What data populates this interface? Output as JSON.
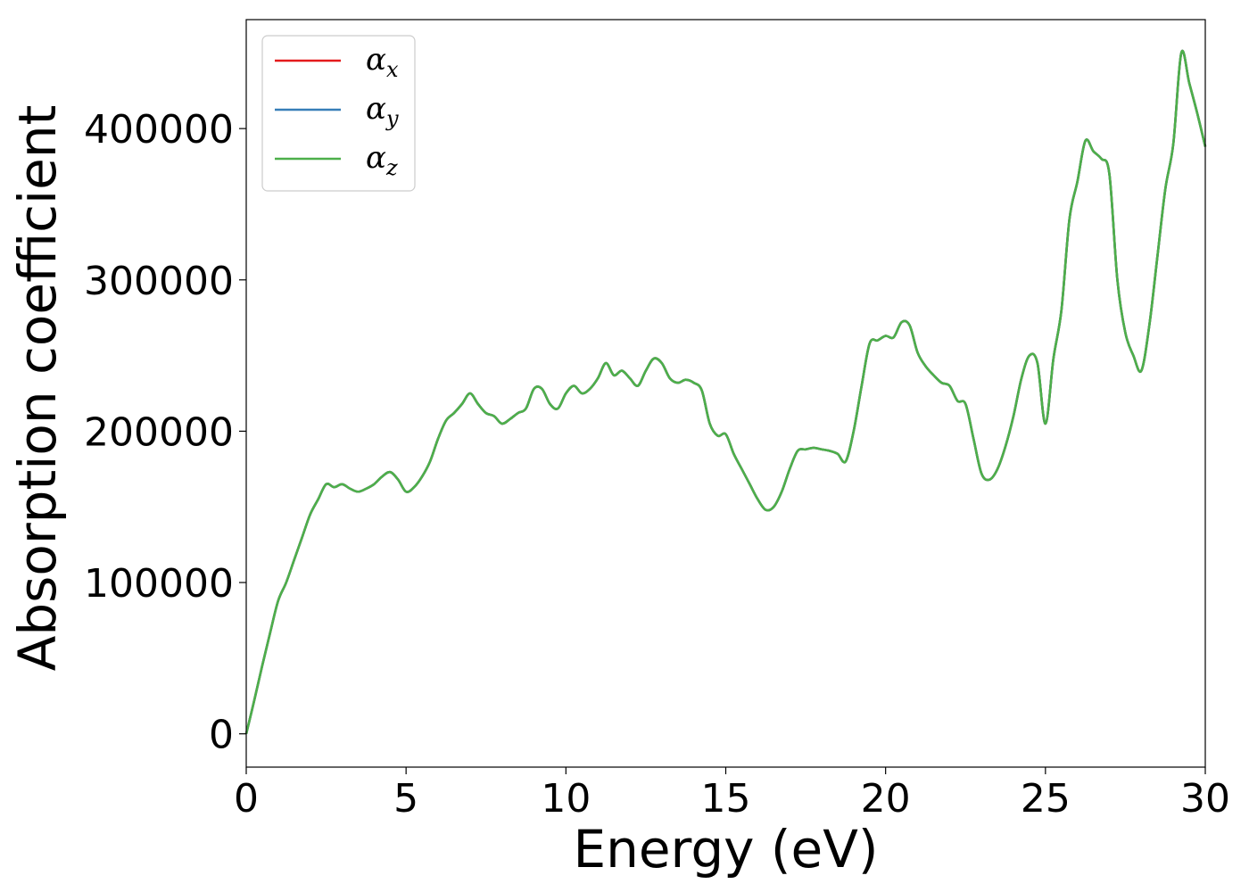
{
  "chart_data": {
    "type": "line",
    "xlabel": "Energy (eV)",
    "ylabel": "Absorption coefficient",
    "xlim": [
      0,
      30
    ],
    "ylim": [
      -22000,
      472000
    ],
    "xticks": [
      0,
      5,
      10,
      15,
      20,
      25,
      30
    ],
    "yticks": [
      0,
      100000,
      200000,
      300000,
      400000
    ],
    "grid": false,
    "legend_position": "top-left",
    "x": [
      0,
      0.25,
      0.5,
      0.75,
      1,
      1.25,
      1.5,
      1.75,
      2,
      2.25,
      2.5,
      2.75,
      3,
      3.25,
      3.5,
      3.75,
      4,
      4.25,
      4.5,
      4.75,
      5,
      5.25,
      5.5,
      5.75,
      6,
      6.25,
      6.5,
      6.75,
      7,
      7.25,
      7.5,
      7.75,
      8,
      8.25,
      8.5,
      8.75,
      9,
      9.25,
      9.5,
      9.75,
      10,
      10.25,
      10.5,
      10.75,
      11,
      11.25,
      11.5,
      11.75,
      12,
      12.25,
      12.5,
      12.75,
      13,
      13.25,
      13.5,
      13.75,
      14,
      14.25,
      14.5,
      14.75,
      15,
      15.25,
      15.5,
      15.75,
      16,
      16.25,
      16.5,
      16.75,
      17,
      17.25,
      17.5,
      17.75,
      18,
      18.25,
      18.5,
      18.75,
      19,
      19.25,
      19.5,
      19.75,
      20,
      20.25,
      20.5,
      20.75,
      21,
      21.25,
      21.5,
      21.75,
      22,
      22.25,
      22.5,
      22.75,
      23,
      23.25,
      23.5,
      23.75,
      24,
      24.25,
      24.5,
      24.75,
      25,
      25.25,
      25.5,
      25.75,
      26,
      26.25,
      26.5,
      26.75,
      27,
      27.25,
      27.5,
      27.75,
      28,
      28.25,
      28.5,
      28.75,
      29,
      29.25,
      29.5,
      29.75,
      30
    ],
    "series": [
      {
        "name": "α_x",
        "color": "#e41a1c",
        "values": [
          0,
          22000,
          45000,
          67000,
          88000,
          100000,
          115000,
          130000,
          145000,
          155000,
          165000,
          163000,
          165000,
          162000,
          160000,
          162000,
          165000,
          170000,
          173000,
          168000,
          160000,
          163000,
          170000,
          180000,
          195000,
          207000,
          212000,
          218000,
          225000,
          218000,
          212000,
          210000,
          205000,
          208000,
          212000,
          215000,
          228000,
          228000,
          218000,
          215000,
          225000,
          230000,
          225000,
          228000,
          235000,
          245000,
          237000,
          240000,
          235000,
          230000,
          240000,
          248000,
          245000,
          235000,
          232000,
          234000,
          232000,
          227000,
          205000,
          197000,
          198000,
          185000,
          175000,
          165000,
          155000,
          148000,
          150000,
          160000,
          175000,
          187000,
          188000,
          189000,
          188000,
          187000,
          185000,
          180000,
          200000,
          230000,
          258000,
          260000,
          263000,
          262000,
          272000,
          270000,
          252000,
          243000,
          237000,
          232000,
          230000,
          220000,
          218000,
          195000,
          172000,
          168000,
          175000,
          190000,
          210000,
          235000,
          250000,
          245000,
          205000,
          248000,
          280000,
          340000,
          365000,
          392000,
          385000,
          380000,
          370000,
          300000,
          265000,
          250000,
          240000,
          270000,
          315000,
          360000,
          390000,
          450000,
          430000,
          410000,
          388000
        ]
      },
      {
        "name": "α_y",
        "color": "#377eb8",
        "values": [
          0,
          22000,
          45000,
          67000,
          88000,
          100000,
          115000,
          130000,
          145000,
          155000,
          165000,
          163000,
          165000,
          162000,
          160000,
          162000,
          165000,
          170000,
          173000,
          168000,
          160000,
          163000,
          170000,
          180000,
          195000,
          207000,
          212000,
          218000,
          225000,
          218000,
          212000,
          210000,
          205000,
          208000,
          212000,
          215000,
          228000,
          228000,
          218000,
          215000,
          225000,
          230000,
          225000,
          228000,
          235000,
          245000,
          237000,
          240000,
          235000,
          230000,
          240000,
          248000,
          245000,
          235000,
          232000,
          234000,
          232000,
          227000,
          205000,
          197000,
          198000,
          185000,
          175000,
          165000,
          155000,
          148000,
          150000,
          160000,
          175000,
          187000,
          188000,
          189000,
          188000,
          187000,
          185000,
          180000,
          200000,
          230000,
          258000,
          260000,
          263000,
          262000,
          272000,
          270000,
          252000,
          243000,
          237000,
          232000,
          230000,
          220000,
          218000,
          195000,
          172000,
          168000,
          175000,
          190000,
          210000,
          235000,
          250000,
          245000,
          205000,
          248000,
          280000,
          340000,
          365000,
          392000,
          385000,
          380000,
          370000,
          300000,
          265000,
          250000,
          240000,
          270000,
          315000,
          360000,
          390000,
          450000,
          430000,
          410000,
          388000
        ]
      },
      {
        "name": "α_z",
        "color": "#4daf4a",
        "values": [
          0,
          22000,
          45000,
          67000,
          88000,
          100000,
          115000,
          130000,
          145000,
          155000,
          165000,
          163000,
          165000,
          162000,
          160000,
          162000,
          165000,
          170000,
          173000,
          168000,
          160000,
          163000,
          170000,
          180000,
          195000,
          207000,
          212000,
          218000,
          225000,
          218000,
          212000,
          210000,
          205000,
          208000,
          212000,
          215000,
          228000,
          228000,
          218000,
          215000,
          225000,
          230000,
          225000,
          228000,
          235000,
          245000,
          237000,
          240000,
          235000,
          230000,
          240000,
          248000,
          245000,
          235000,
          232000,
          234000,
          232000,
          227000,
          205000,
          197000,
          198000,
          185000,
          175000,
          165000,
          155000,
          148000,
          150000,
          160000,
          175000,
          187000,
          188000,
          189000,
          188000,
          187000,
          185000,
          180000,
          200000,
          230000,
          258000,
          260000,
          263000,
          262000,
          272000,
          270000,
          252000,
          243000,
          237000,
          232000,
          230000,
          220000,
          218000,
          195000,
          172000,
          168000,
          175000,
          190000,
          210000,
          235000,
          250000,
          245000,
          205000,
          248000,
          280000,
          340000,
          365000,
          392000,
          385000,
          380000,
          370000,
          300000,
          265000,
          250000,
          240000,
          270000,
          315000,
          360000,
          390000,
          450000,
          430000,
          410000,
          388000
        ]
      }
    ],
    "legend": [
      {
        "symbol": "α",
        "subscript": "x",
        "color": "#e41a1c"
      },
      {
        "symbol": "α",
        "subscript": "y",
        "color": "#377eb8"
      },
      {
        "symbol": "α",
        "subscript": "z",
        "color": "#4daf4a"
      }
    ]
  }
}
